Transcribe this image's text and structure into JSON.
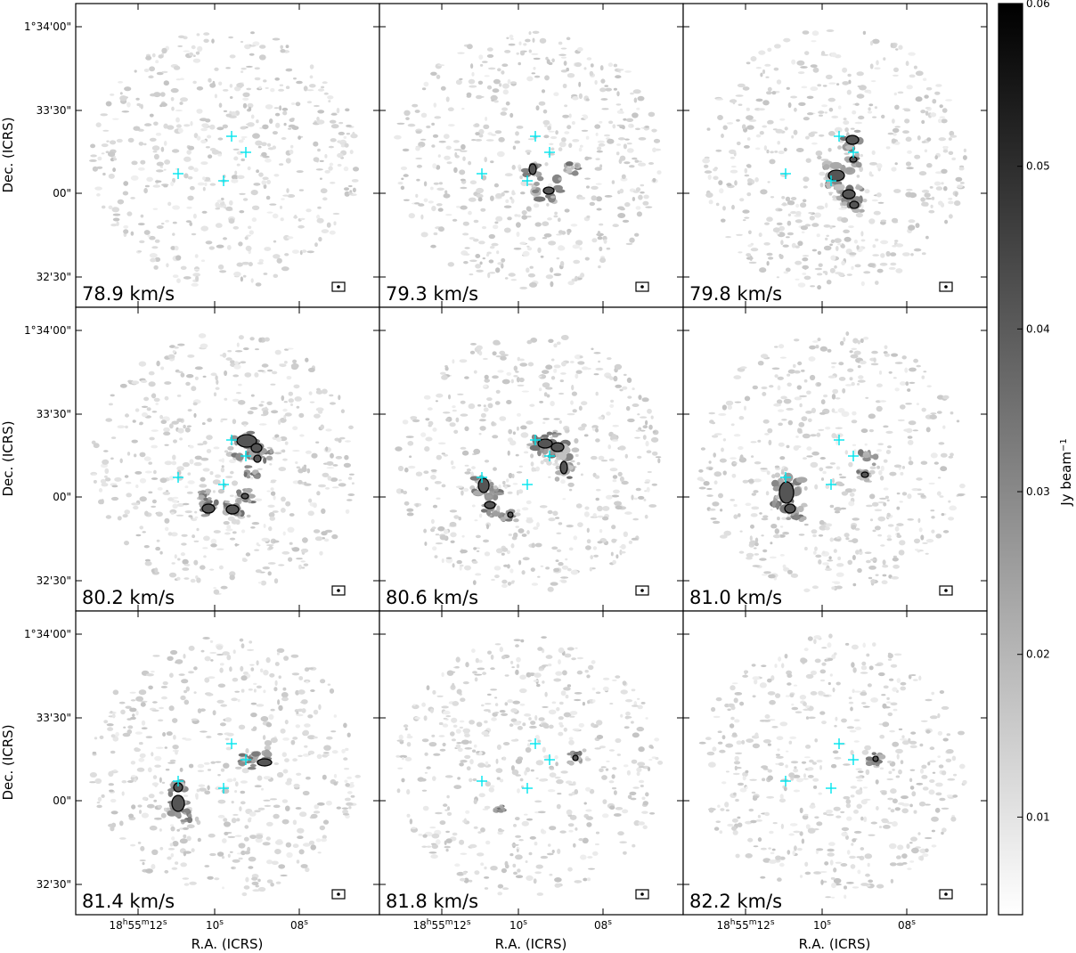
{
  "chart_data": {
    "type": "heatmap",
    "description_units": "Channel maps, grayscale intensity with black contours and cyan cross markers",
    "xlabel": "R.A. (ICRS)",
    "ylabel": "Dec. (ICRS)",
    "xtick_labels": [
      {
        "main": "18",
        "sup1": "h",
        "mid": "55",
        "sup2": "m",
        "end": "12",
        "sup3": "s"
      },
      {
        "main": "10",
        "sup3": "s"
      },
      {
        "main": "08",
        "sup3": "s"
      }
    ],
    "ytick_labels": [
      "1°34'00\"",
      "33'30\"",
      "00\"",
      "32'30\""
    ],
    "colorbar": {
      "label": "Jy beam",
      "label_sup": "−1",
      "range": [
        0.004,
        0.06
      ],
      "ticks": [
        {
          "value": 0.01,
          "label": "0.01"
        },
        {
          "value": 0.02,
          "label": "0.02"
        },
        {
          "value": 0.03,
          "label": "0.03"
        },
        {
          "value": 0.04,
          "label": "0.04"
        },
        {
          "value": 0.05,
          "label": "0.05"
        },
        {
          "value": 0.06,
          "label": "0.06"
        }
      ],
      "cmap": "gray_r"
    },
    "marker_color": "#00e5ee",
    "contour_color": "#000000",
    "panels": [
      {
        "label": "78.9 km/s"
      },
      {
        "label": "79.3 km/s"
      },
      {
        "label": "79.8 km/s"
      },
      {
        "label": "80.2 km/s"
      },
      {
        "label": "80.6 km/s"
      },
      {
        "label": "81.0 km/s"
      },
      {
        "label": "81.4 km/s"
      },
      {
        "label": "81.8 km/s"
      },
      {
        "label": "82.2 km/s"
      }
    ]
  }
}
